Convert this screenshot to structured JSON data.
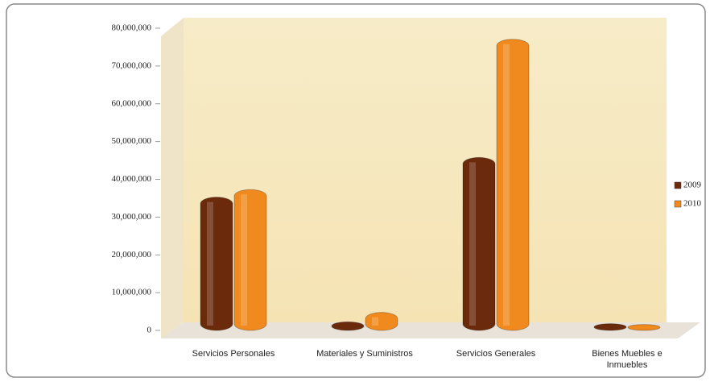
{
  "chart_data": {
    "type": "bar",
    "categories": [
      "Servicios Personales",
      "Materiales y Suministros",
      "Servicios Generales",
      "Bienes Muebles e Inmuebles"
    ],
    "series": [
      {
        "name": "2009",
        "color": "#6b2a0c",
        "values": [
          34000000,
          1000000,
          44500000,
          500000
        ]
      },
      {
        "name": "2010",
        "color": "#f08a1e",
        "values": [
          36000000,
          3500000,
          75800000,
          300000
        ]
      }
    ],
    "ylim": [
      0,
      80000000
    ],
    "yticks": [
      {
        "value": 0,
        "label": "0"
      },
      {
        "value": 10000000,
        "label": "10,000,000"
      },
      {
        "value": 20000000,
        "label": "20,000,000"
      },
      {
        "value": 30000000,
        "label": "30,000,000"
      },
      {
        "value": 40000000,
        "label": "40,000,000"
      },
      {
        "value": 50000000,
        "label": "50,000,000"
      },
      {
        "value": 60000000,
        "label": "60,000,000"
      },
      {
        "value": 70000000,
        "label": "70,000,000"
      },
      {
        "value": 80000000,
        "label": "80,000,000"
      }
    ],
    "grid": false,
    "legend": "right"
  }
}
